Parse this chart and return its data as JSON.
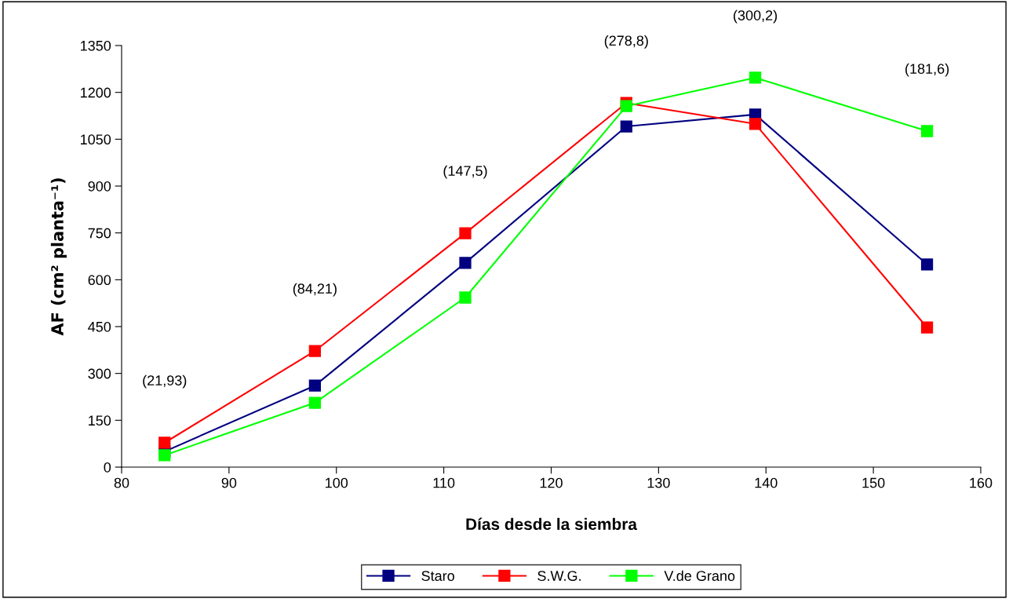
{
  "chart_data": {
    "type": "line",
    "xlabel": "Días desde la siembra",
    "ylabel": "AF (cm² planta⁻¹)",
    "x": [
      84,
      98,
      112,
      127,
      139,
      155
    ],
    "series": [
      {
        "name": "Staro",
        "color": "#000080",
        "values": [
          50,
          261,
          654,
          1091,
          1129,
          649
        ]
      },
      {
        "name": "S.W.G.",
        "color": "#ff0000",
        "values": [
          78,
          372,
          749,
          1166,
          1099,
          447
        ]
      },
      {
        "name": "V.de Grano",
        "color": "#00ff00",
        "values": [
          38,
          206,
          543,
          1156,
          1247,
          1076
        ]
      }
    ],
    "annotations": [
      "(21,93)",
      "(84,21)",
      "(147,5)",
      "(278,8)",
      "(300,2)",
      "(181,6)"
    ],
    "xlim": [
      80,
      160
    ],
    "xticks": [
      80,
      90,
      100,
      110,
      120,
      130,
      140,
      150,
      160
    ],
    "ylim": [
      0,
      1350
    ],
    "yticks": [
      0,
      150,
      300,
      450,
      600,
      750,
      900,
      1050,
      1200,
      1350
    ],
    "grid": false,
    "legend": "bottom",
    "marker": "square",
    "line_style": "solid"
  }
}
